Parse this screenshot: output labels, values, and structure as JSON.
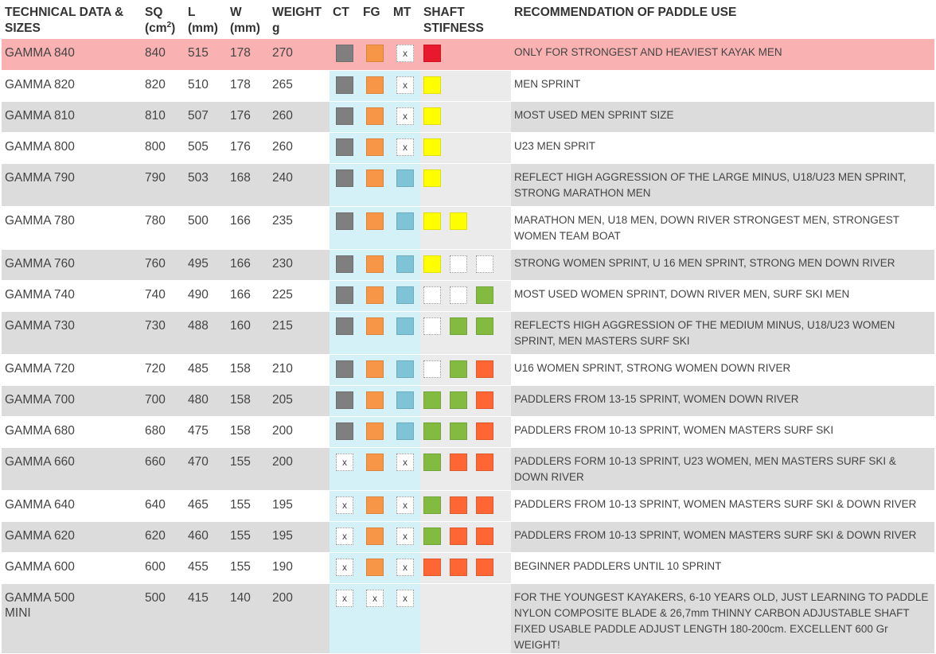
{
  "headers": {
    "name_line1": "TECHNICAL DATA &",
    "name_line2": "SIZES",
    "sq_line1": "SQ",
    "sq_line2": "(cm",
    "sq_sup": "2",
    "sq_close": ")",
    "l_line1": "L",
    "l_line2": "(mm)",
    "w_line1": "W",
    "w_line2": "(mm)",
    "weight_line1": "WEIGHT",
    "weight_line2": "g",
    "ct": "CT",
    "fg": "FG",
    "mt": "MT",
    "shaft_line1": "SHAFT",
    "shaft_line2": "STIFNESS",
    "rec": "RECOMMENDATION OF PADDLE USE"
  },
  "colors": {
    "gray": "#7f7f7f",
    "orange": "#f79646",
    "blue": "#7ec4d6",
    "red": "#e8192c",
    "yellow": "#ffff00",
    "green": "#82bb3f",
    "orange-red": "#ff6633",
    "white": "#ffffff",
    "highlight_row": "#f9b1b1",
    "alt_row": "#dcdcdc",
    "material_band": "#d4f1f8",
    "shaft_band": "#ebebeb"
  },
  "rows": [
    {
      "name": "GAMMA 840",
      "name2": "",
      "sq": "840",
      "l": "515",
      "w": "178",
      "weight": "270",
      "ct": "gray",
      "fg": "orange",
      "mt": "x",
      "shaft": [
        "red"
      ],
      "rec": "ONLY FOR STRONGEST AND HEAVIEST KAYAK MEN",
      "style": "hl",
      "h": 39
    },
    {
      "name": "GAMMA 820",
      "name2": "",
      "sq": "820",
      "l": "510",
      "w": "178",
      "weight": "265",
      "ct": "gray",
      "fg": "orange",
      "mt": "x",
      "shaft": [
        "yellow"
      ],
      "rec": "MEN SPRINT",
      "style": "plain",
      "h": 39
    },
    {
      "name": "GAMMA 810",
      "name2": "",
      "sq": "810",
      "l": "507",
      "w": "176",
      "weight": "260",
      "ct": "gray",
      "fg": "orange",
      "mt": "x",
      "shaft": [
        "yellow"
      ],
      "rec": "MOST USED MEN SPRINT SIZE",
      "style": "alt",
      "h": 39
    },
    {
      "name": "GAMMA 800",
      "name2": "",
      "sq": "800",
      "l": "505",
      "w": "176",
      "weight": "260",
      "ct": "gray",
      "fg": "orange",
      "mt": "x",
      "shaft": [
        "yellow"
      ],
      "rec": "U23 MEN SPRIT",
      "style": "plain",
      "h": 39
    },
    {
      "name": "GAMMA 790",
      "name2": "",
      "sq": "790",
      "l": "503",
      "w": "168",
      "weight": "240",
      "ct": "gray",
      "fg": "orange",
      "mt": "blue",
      "shaft": [
        "yellow"
      ],
      "rec": "REFLECT HIGH AGGRESSION OF THE LARGE MINUS, U18/U23 MEN SPRINT, STRONG MARATHON MEN",
      "style": "alt",
      "h": 54
    },
    {
      "name": "GAMMA 780",
      "name2": "",
      "sq": "780",
      "l": "500",
      "w": "166",
      "weight": "235",
      "ct": "gray",
      "fg": "orange",
      "mt": "blue",
      "shaft": [
        "yellow",
        "yellow"
      ],
      "rec": "MARATHON MEN, U18 MEN, DOWN RIVER STRONGEST MEN, STRONGEST WOMEN TEAM BOAT",
      "style": "plain",
      "h": 54
    },
    {
      "name": "GAMMA 760",
      "name2": "",
      "sq": "760",
      "l": "495",
      "w": "166",
      "weight": "230",
      "ct": "gray",
      "fg": "orange",
      "mt": "blue",
      "shaft": [
        "yellow",
        "white",
        "white"
      ],
      "rec": "STRONG WOMEN SPRINT, U 16 MEN SPRINT, STRONG MEN DOWN RIVER",
      "style": "alt",
      "h": 39
    },
    {
      "name": "GAMMA 740",
      "name2": "",
      "sq": "740",
      "l": "490",
      "w": "166",
      "weight": "225",
      "ct": "gray",
      "fg": "orange",
      "mt": "blue",
      "shaft": [
        "white",
        "white",
        "green"
      ],
      "rec": "MOST USED WOMEN SPRINT, DOWN RIVER MEN, SURF SKI MEN",
      "style": "plain",
      "h": 39
    },
    {
      "name": "GAMMA 730",
      "name2": "",
      "sq": "730",
      "l": "488",
      "w": "160",
      "weight": "215",
      "ct": "gray",
      "fg": "orange",
      "mt": "blue",
      "shaft": [
        "white",
        "green",
        "green"
      ],
      "rec": "REFLECTS HIGH AGGRESSION OF THE MEDIUM MINUS, U18/U23 WOMEN SPRINT, MEN MASTERS SURF SKI",
      "style": "alt",
      "h": 54
    },
    {
      "name": "GAMMA 720",
      "name2": "",
      "sq": "720",
      "l": "485",
      "w": "158",
      "weight": "210",
      "ct": "gray",
      "fg": "orange",
      "mt": "blue",
      "shaft": [
        "white",
        "green",
        "orange-red"
      ],
      "rec": "U16 WOMEN SPRINT, STRONG WOMEN DOWN RIVER",
      "style": "plain",
      "h": 39
    },
    {
      "name": "GAMMA 700",
      "name2": "",
      "sq": "700",
      "l": "480",
      "w": "158",
      "weight": "205",
      "ct": "gray",
      "fg": "orange",
      "mt": "blue",
      "shaft": [
        "green",
        "green",
        "orange-red"
      ],
      "rec": "PADDLERS FROM 13-15 SPRINT, WOMEN DOWN RIVER",
      "style": "alt",
      "h": 39
    },
    {
      "name": "GAMMA 680",
      "name2": "",
      "sq": "680",
      "l": "475",
      "w": "158",
      "weight": "200",
      "ct": "gray",
      "fg": "orange",
      "mt": "blue",
      "shaft": [
        "green",
        "green",
        "orange-red"
      ],
      "rec": "PADDLERS FROM 10-13 SPRINT, WOMEN MASTERS SURF SKI",
      "style": "plain",
      "h": 39
    },
    {
      "name": "GAMMA 660",
      "name2": "",
      "sq": "660",
      "l": "470",
      "w": "155",
      "weight": "200",
      "ct": "x",
      "fg": "orange",
      "mt": "x",
      "shaft": [
        "green",
        "orange-red",
        "orange-red"
      ],
      "rec": "PADDLERS FORM 10-13 SPRINT, U23 WOMEN, MEN MASTERS SURF SKI & DOWN RIVER",
      "style": "alt",
      "h": 54
    },
    {
      "name": "GAMMA 640",
      "name2": "",
      "sq": "640",
      "l": "465",
      "w": "155",
      "weight": "195",
      "ct": "x",
      "fg": "orange",
      "mt": "x",
      "shaft": [
        "green",
        "orange-red",
        "orange-red"
      ],
      "rec": "PADDLERS FROM 10-13 SPRINT, WOMEN MASTERS SURF SKI & DOWN RIVER",
      "style": "plain",
      "h": 39
    },
    {
      "name": "GAMMA 620",
      "name2": "",
      "sq": "620",
      "l": "460",
      "w": "155",
      "weight": "195",
      "ct": "x",
      "fg": "orange",
      "mt": "x",
      "shaft": [
        "green",
        "orange-red",
        "orange-red"
      ],
      "rec": "PADDLERS FROM 10-13 SPRINT, WOMEN MASTERS SURF SKI & DOWN RIVER",
      "style": "alt",
      "h": 39
    },
    {
      "name": "GAMMA 600",
      "name2": "",
      "sq": "600",
      "l": "455",
      "w": "155",
      "weight": "190",
      "ct": "x",
      "fg": "orange",
      "mt": "x",
      "shaft": [
        "orange-red",
        "orange-red",
        "orange-red"
      ],
      "rec": "BEGINNER PADDLERS UNTIL 10 SPRINT",
      "style": "plain",
      "h": 39
    },
    {
      "name": "GAMMA 500",
      "name2": "MINI",
      "sq": "500",
      "l": "415",
      "w": "140",
      "weight": "200",
      "ct": "x",
      "fg": "x",
      "mt": "x",
      "shaft": [],
      "rec": "FOR THE YOUNGEST KAYAKERS, 6-10 YEARS OLD, JUST LEARNING TO PADDLE NYLON COMPOSITE BLADE & 26,7mm THINNY CARBON ADJUSTABLE SHAFT FIXED USABLE PADDLE ADJUST LENGTH 180-200cm. EXCELLENT 600 Gr WEIGHT!",
      "style": "alt",
      "h": 75
    }
  ]
}
